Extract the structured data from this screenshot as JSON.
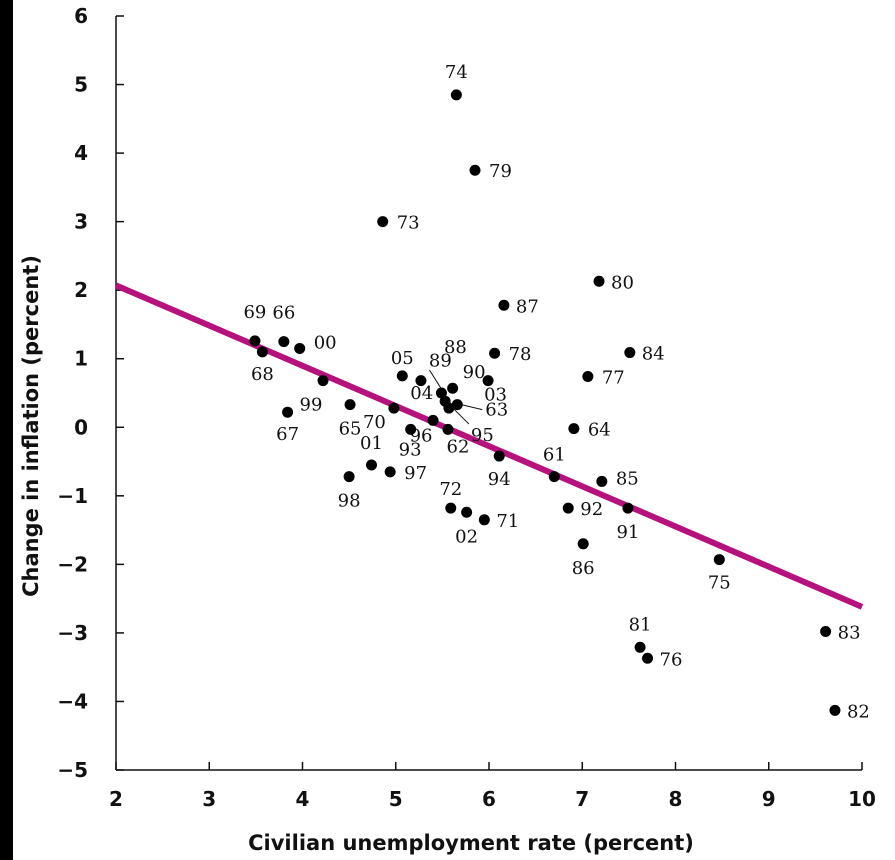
{
  "chart_data": {
    "type": "scatter",
    "title": "",
    "xlabel": "Civilian unemployment rate (percent)",
    "ylabel": "Change in inflation (percent)",
    "xlim": [
      2,
      10
    ],
    "ylim": [
      -5,
      6
    ],
    "xticks": [
      "2",
      "3",
      "4",
      "5",
      "6",
      "7",
      "8",
      "9",
      "10"
    ],
    "yticks": [
      "6",
      "5",
      "4",
      "3",
      "2",
      "1",
      "0",
      "−1",
      "−2",
      "−3",
      "−4",
      "−5"
    ],
    "grid": false,
    "trend_line": {
      "x": [
        2,
        10
      ],
      "y": [
        2.07,
        -2.62
      ],
      "color": "#b5127e"
    },
    "point_color": "#000000",
    "points": [
      {
        "label": "74",
        "x": 5.65,
        "y": 4.85
      },
      {
        "label": "79",
        "x": 5.85,
        "y": 3.75
      },
      {
        "label": "73",
        "x": 4.86,
        "y": 3.0
      },
      {
        "label": "80",
        "x": 7.18,
        "y": 2.13
      },
      {
        "label": "87",
        "x": 6.16,
        "y": 1.78
      },
      {
        "label": "69",
        "x": 3.49,
        "y": 1.26
      },
      {
        "label": "66",
        "x": 3.8,
        "y": 1.25
      },
      {
        "label": "68",
        "x": 3.57,
        "y": 1.1
      },
      {
        "label": "00",
        "x": 3.97,
        "y": 1.15
      },
      {
        "label": "78",
        "x": 6.06,
        "y": 1.08
      },
      {
        "label": "84",
        "x": 7.51,
        "y": 1.09
      },
      {
        "label": "05",
        "x": 5.07,
        "y": 0.75
      },
      {
        "label": "89",
        "x": 5.27,
        "y": 0.68
      },
      {
        "label": "99",
        "x": 4.22,
        "y": 0.68
      },
      {
        "label": "77",
        "x": 7.06,
        "y": 0.74
      },
      {
        "label": "90",
        "x": 5.61,
        "y": 0.57
      },
      {
        "label": "03",
        "x": 5.99,
        "y": 0.68
      },
      {
        "label": "88",
        "x": 5.49,
        "y": 0.5
      },
      {
        "label": "04",
        "x": 5.53,
        "y": 0.38
      },
      {
        "label": "63",
        "x": 5.66,
        "y": 0.33
      },
      {
        "label": "95",
        "x": 5.57,
        "y": 0.28
      },
      {
        "label": "70",
        "x": 4.98,
        "y": 0.28
      },
      {
        "label": "65",
        "x": 4.51,
        "y": 0.33
      },
      {
        "label": "67",
        "x": 3.84,
        "y": 0.22
      },
      {
        "label": "96",
        "x": 5.4,
        "y": 0.1
      },
      {
        "label": "93",
        "x": 5.16,
        "y": -0.03
      },
      {
        "label": "62",
        "x": 5.56,
        "y": -0.03
      },
      {
        "label": "64",
        "x": 6.91,
        "y": -0.02
      },
      {
        "label": "94",
        "x": 6.11,
        "y": -0.42
      },
      {
        "label": "01",
        "x": 4.74,
        "y": -0.55
      },
      {
        "label": "97",
        "x": 4.94,
        "y": -0.65
      },
      {
        "label": "98",
        "x": 4.5,
        "y": -0.72
      },
      {
        "label": "61",
        "x": 6.7,
        "y": -0.72
      },
      {
        "label": "85",
        "x": 7.21,
        "y": -0.79
      },
      {
        "label": "72",
        "x": 5.59,
        "y": -1.18
      },
      {
        "label": "02",
        "x": 5.76,
        "y": -1.24
      },
      {
        "label": "71",
        "x": 5.95,
        "y": -1.35
      },
      {
        "label": "92",
        "x": 6.85,
        "y": -1.18
      },
      {
        "label": "91",
        "x": 7.49,
        "y": -1.18
      },
      {
        "label": "86",
        "x": 7.01,
        "y": -1.7
      },
      {
        "label": "75",
        "x": 8.47,
        "y": -1.93
      },
      {
        "label": "81",
        "x": 7.62,
        "y": -3.21
      },
      {
        "label": "76",
        "x": 7.7,
        "y": -3.37
      },
      {
        "label": "83",
        "x": 9.61,
        "y": -2.98
      },
      {
        "label": "82",
        "x": 9.71,
        "y": -4.13
      }
    ]
  }
}
